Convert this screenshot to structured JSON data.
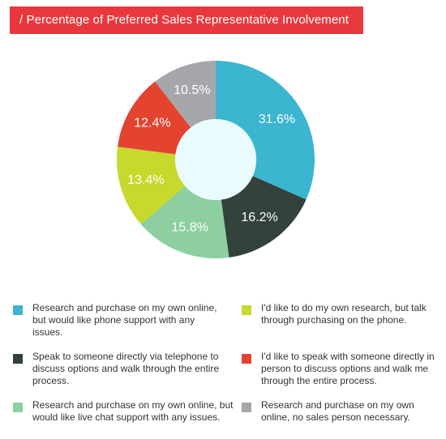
{
  "title": "/ Percentage of Preferred Sales Representative Involvement",
  "chart_data": {
    "type": "pie",
    "donut": true,
    "title": "/ Percentage of Preferred Sales Representative Involvement",
    "labels": [
      "Research and purchase on my own online, but would like phone support with any issues.",
      "Speak to someone directly via telephone to discuss options and walk through the entire process.",
      "Research and purchase on my own online, but would like live chat support with any issues.",
      "I'd like to do my own research, but talk through purchasing on the phone.",
      "I'd like to speak with someone directly in person to discuss options and walk me through the entire process.",
      "Research and purchase on my own online, no sales person necessary."
    ],
    "values": [
      31.6,
      16.2,
      15.8,
      13.4,
      12.4,
      10.5
    ],
    "value_labels": [
      "31.6%",
      "16.2%",
      "15.8%",
      "13.4%",
      "12.4%",
      "10.5%"
    ],
    "colors": [
      "#3bb5d0",
      "#33423b",
      "#8dcfa0",
      "#c7d92c",
      "#e4432f",
      "#a6a7aa"
    ],
    "center_color": "#e9fbfc",
    "legend_position": "bottom"
  }
}
